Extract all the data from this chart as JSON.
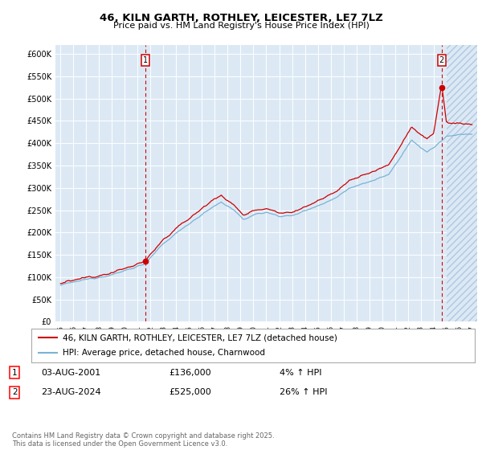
{
  "title": "46, KILN GARTH, ROTHLEY, LEICESTER, LE7 7LZ",
  "subtitle": "Price paid vs. HM Land Registry's House Price Index (HPI)",
  "title_fontsize": 9.5,
  "subtitle_fontsize": 8,
  "background_color": "#ffffff",
  "plot_bg_color": "#dce9f5",
  "grid_color": "#ffffff",
  "hpi_line_color": "#7ab3d4",
  "price_line_color": "#cc0000",
  "marker_color": "#cc0000",
  "ylim": [
    0,
    620000
  ],
  "yticks": [
    0,
    50000,
    100000,
    150000,
    200000,
    250000,
    300000,
    350000,
    400000,
    450000,
    500000,
    550000,
    600000
  ],
  "ytick_labels": [
    "£0",
    "£50K",
    "£100K",
    "£150K",
    "£200K",
    "£250K",
    "£300K",
    "£350K",
    "£400K",
    "£450K",
    "£500K",
    "£550K",
    "£600K"
  ],
  "point1_x": 2001.58,
  "point1_y": 136000,
  "point2_x": 2024.64,
  "point2_y": 525000,
  "legend_entry1": "46, KILN GARTH, ROTHLEY, LEICESTER, LE7 7LZ (detached house)",
  "legend_entry2": "HPI: Average price, detached house, Charnwood",
  "annotation1_date": "03-AUG-2001",
  "annotation1_price": "£136,000",
  "annotation1_hpi": "4% ↑ HPI",
  "annotation2_date": "23-AUG-2024",
  "annotation2_price": "£525,000",
  "annotation2_hpi": "26% ↑ HPI",
  "footer": "Contains HM Land Registry data © Crown copyright and database right 2025.\nThis data is licensed under the Open Government Licence v3.0.",
  "hatch_start": 2025.0,
  "xlim_left": 1994.6,
  "xlim_right": 2027.4
}
